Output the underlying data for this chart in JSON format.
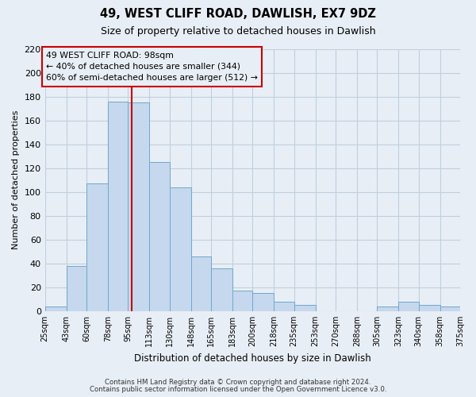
{
  "title": "49, WEST CLIFF ROAD, DAWLISH, EX7 9DZ",
  "subtitle": "Size of property relative to detached houses in Dawlish",
  "xlabel": "Distribution of detached houses by size in Dawlish",
  "ylabel": "Number of detached properties",
  "footer_lines": [
    "Contains HM Land Registry data © Crown copyright and database right 2024.",
    "Contains public sector information licensed under the Open Government Licence v3.0."
  ],
  "bin_edges": [
    25,
    43,
    60,
    78,
    95,
    113,
    130,
    148,
    165,
    183,
    200,
    218,
    235,
    253,
    270,
    288,
    305,
    323,
    340,
    358,
    375
  ],
  "bin_heights": [
    4,
    38,
    107,
    176,
    175,
    125,
    104,
    46,
    36,
    17,
    15,
    8,
    5,
    0,
    0,
    0,
    4,
    8,
    5,
    4
  ],
  "tick_labels": [
    "25sqm",
    "43sqm",
    "60sqm",
    "78sqm",
    "95sqm",
    "113sqm",
    "130sqm",
    "148sqm",
    "165sqm",
    "183sqm",
    "200sqm",
    "218sqm",
    "235sqm",
    "253sqm",
    "270sqm",
    "288sqm",
    "305sqm",
    "323sqm",
    "340sqm",
    "358sqm",
    "375sqm"
  ],
  "bar_color": "#c5d8ed",
  "bar_edge_color": "#6fa8d0",
  "grid_color": "#c0cfdf",
  "background_color": "#e8eef5",
  "annotation_box_edge": "#cc0000",
  "vline_color": "#cc0000",
  "vline_x": 98,
  "annotation_title": "49 WEST CLIFF ROAD: 98sqm",
  "annotation_line1": "← 40% of detached houses are smaller (344)",
  "annotation_line2": "60% of semi-detached houses are larger (512) →",
  "ylim": [
    0,
    220
  ],
  "yticks": [
    0,
    20,
    40,
    60,
    80,
    100,
    120,
    140,
    160,
    180,
    200,
    220
  ]
}
